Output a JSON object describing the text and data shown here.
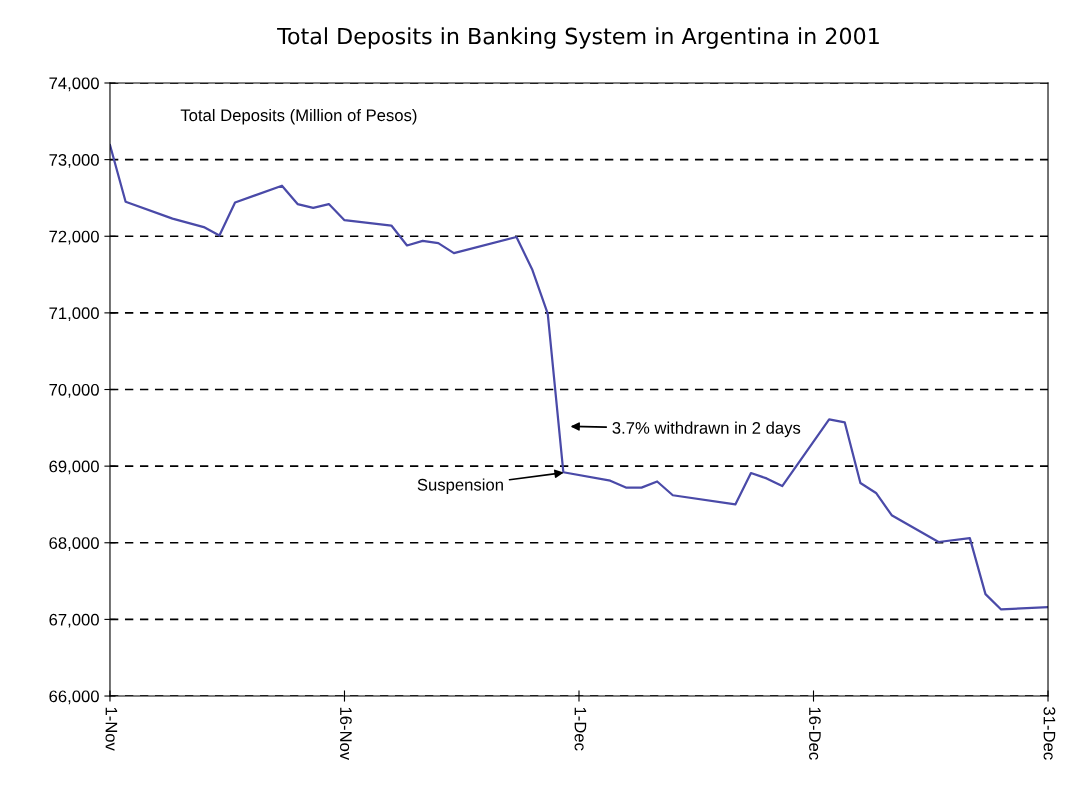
{
  "chart_data": {
    "type": "line",
    "title": "Total Deposits in Banking System in Argentina in 2001",
    "x": [
      "2001-11-01",
      "2001-11-02",
      "2001-11-05",
      "2001-11-07",
      "2001-11-08",
      "2001-11-09",
      "2001-11-12",
      "2001-11-13",
      "2001-11-14",
      "2001-11-15",
      "2001-11-16",
      "2001-11-19",
      "2001-11-20",
      "2001-11-21",
      "2001-11-22",
      "2001-11-23",
      "2001-11-27",
      "2001-11-28",
      "2001-11-29",
      "2001-11-30",
      "2001-12-03",
      "2001-12-04",
      "2001-12-05",
      "2001-12-06",
      "2001-12-07",
      "2001-12-11",
      "2001-12-12",
      "2001-12-13",
      "2001-12-14",
      "2001-12-17",
      "2001-12-18",
      "2001-12-19",
      "2001-12-20",
      "2001-12-21",
      "2001-12-24",
      "2001-12-26",
      "2001-12-27",
      "2001-12-28",
      "2001-12-31"
    ],
    "series": [
      {
        "color": "#4a4aa8",
        "values": [
          73190,
          72450,
          72230,
          72120,
          72010,
          72440,
          72660,
          72420,
          72370,
          72420,
          72210,
          72140,
          71880,
          71940,
          71910,
          71780,
          71990,
          71570,
          70990,
          68920,
          68810,
          68720,
          68720,
          68800,
          68620,
          68500,
          68910,
          68840,
          68740,
          69610,
          69570,
          68780,
          68650,
          68360,
          68010,
          68060,
          67330,
          67130,
          67160
        ]
      }
    ],
    "xlim": [
      "2001-11-01",
      "2001-12-31"
    ],
    "xticks": [
      {
        "value": "2001-11-01",
        "label": "1-Nov"
      },
      {
        "value": "2001-11-16",
        "label": "16-Nov"
      },
      {
        "value": "2001-12-01",
        "label": "1-Dec"
      },
      {
        "value": "2001-12-16",
        "label": "16-Dec"
      },
      {
        "value": "2001-12-31",
        "label": "31-Dec"
      }
    ],
    "ylim": [
      66000,
      74000
    ],
    "yticks": [
      {
        "value": 66000,
        "label": "66,000"
      },
      {
        "value": 67000,
        "label": "67,000"
      },
      {
        "value": 68000,
        "label": "68,000"
      },
      {
        "value": 69000,
        "label": "69,000"
      },
      {
        "value": 70000,
        "label": "70,000"
      },
      {
        "value": 71000,
        "label": "71,000"
      },
      {
        "value": 72000,
        "label": "72,000"
      },
      {
        "value": 73000,
        "label": "73,000"
      },
      {
        "value": 74000,
        "label": "74,000"
      }
    ],
    "annotations": [
      "Total Deposits (Million of Pesos)",
      "3.7% withdrawn in 2 days",
      {
        "text": "Suspension",
        "x": "2001-11-30",
        "y": 68920
      }
    ],
    "grid": "y",
    "line_style": "solid",
    "marker": "none"
  }
}
